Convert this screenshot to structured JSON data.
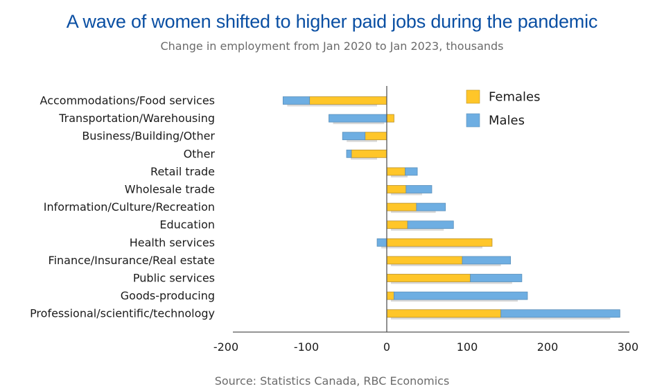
{
  "chart_data": {
    "type": "bar",
    "orientation": "horizontal",
    "stacked": true,
    "title": "A wave of women shifted to higher paid jobs during the pandemic",
    "subtitle": "Change in employment from Jan 2020 to Jan 2023, thousands",
    "source": "Source: Statistics Canada, RBC Economics",
    "xlabel": "",
    "ylabel": "",
    "xlim": [
      -200,
      300
    ],
    "xticks": [
      -200,
      -100,
      0,
      100,
      200,
      300
    ],
    "xtick_labels": [
      "-200",
      "-100",
      "0",
      "100",
      "200",
      "300"
    ],
    "grid": false,
    "legend_position": "top-right",
    "categories": [
      "Accommodations/Food services",
      "Transportation/Warehousing",
      "Business/Building/Other",
      "Other",
      "Retail trade",
      "Wholesale trade",
      "Information/Culture/Recreation",
      "Education",
      "Health services",
      "Finance/Insurance/Real estate",
      "Public services",
      "Goods-producing",
      "Professional/scientific/technology"
    ],
    "series": [
      {
        "name": "Females",
        "color": "#ffc629",
        "values": [
          -96,
          9,
          -27,
          -44,
          23,
          24,
          37,
          26,
          131,
          94,
          104,
          9,
          142
        ]
      },
      {
        "name": "Males",
        "color": "#6eaee2",
        "values": [
          -33,
          -72,
          -28,
          -6,
          15,
          32,
          36,
          57,
          -12,
          60,
          64,
          166,
          148
        ]
      }
    ]
  }
}
